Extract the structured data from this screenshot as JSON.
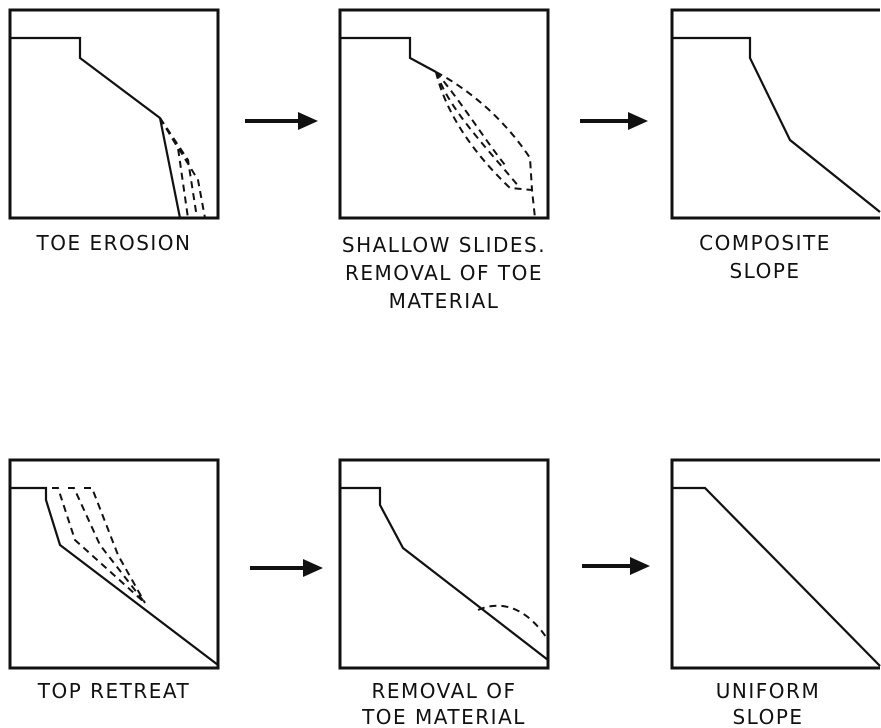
{
  "panels": [
    {
      "label": [
        "TOE EROSION"
      ]
    },
    {
      "label": [
        "SHALLOW SLIDES.",
        "REMOVAL OF TOE",
        "MATERIAL"
      ]
    },
    {
      "label": [
        "COMPOSITE",
        "SLOPE"
      ]
    },
    {
      "label": [
        "TOP RETREAT"
      ]
    },
    {
      "label": [
        "REMOVAL OF",
        "TOE MATERIAL"
      ]
    },
    {
      "label": [
        "UNIFORM",
        "SLOPE"
      ]
    }
  ]
}
